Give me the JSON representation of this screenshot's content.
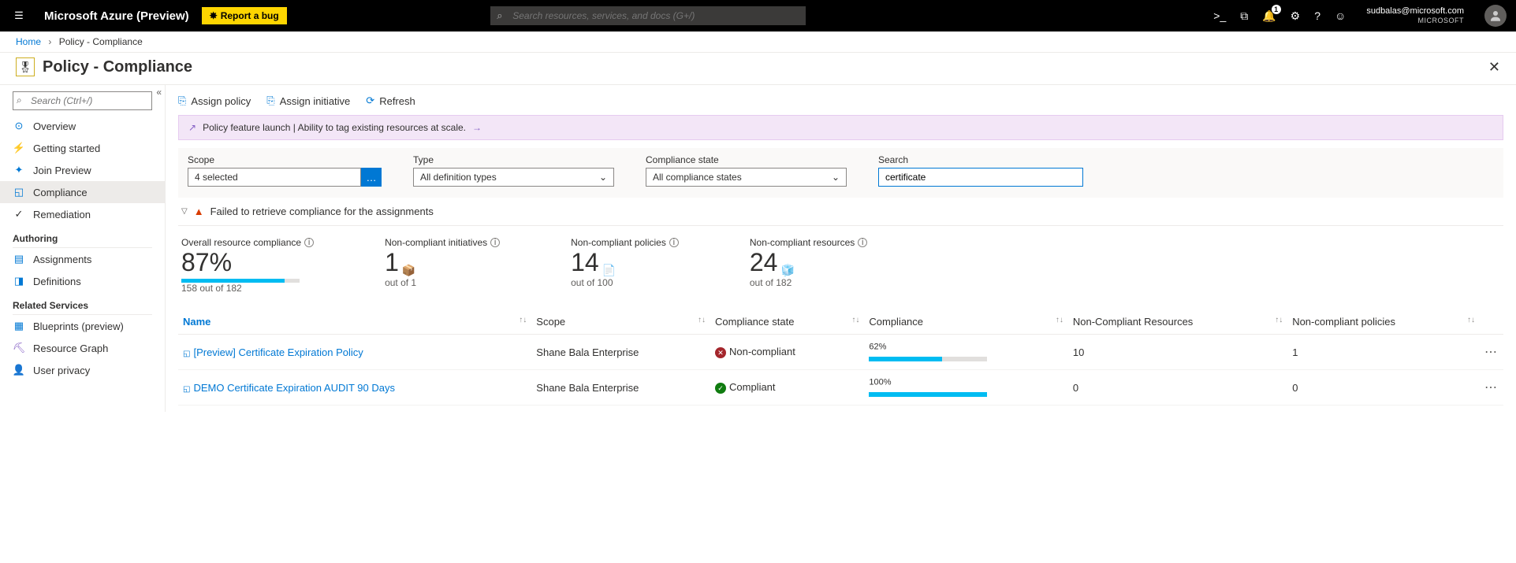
{
  "topbar": {
    "brand": "Microsoft Azure (Preview)",
    "bug_label": "Report a bug",
    "search_placeholder": "Search resources, services, and docs (G+/)",
    "notification_count": "1",
    "user_email": "sudbalas@microsoft.com",
    "user_org": "MICROSOFT"
  },
  "breadcrumb": {
    "home": "Home",
    "current": "Policy - Compliance"
  },
  "page": {
    "title": "Policy - Compliance"
  },
  "sidebar": {
    "search_placeholder": "Search (Ctrl+/)",
    "items": [
      {
        "label": "Overview",
        "icon": "⊙",
        "color": "#0078d4"
      },
      {
        "label": "Getting started",
        "icon": "⚡",
        "color": "#323130"
      },
      {
        "label": "Join Preview",
        "icon": "✦",
        "color": "#0078d4"
      },
      {
        "label": "Compliance",
        "icon": "◱",
        "color": "#0078d4",
        "active": true
      },
      {
        "label": "Remediation",
        "icon": "✓",
        "color": "#323130"
      }
    ],
    "authoring_label": "Authoring",
    "authoring": [
      {
        "label": "Assignments",
        "icon": "▤",
        "color": "#0078d4"
      },
      {
        "label": "Definitions",
        "icon": "◨",
        "color": "#0078d4"
      }
    ],
    "related_label": "Related Services",
    "related": [
      {
        "label": "Blueprints (preview)",
        "icon": "▦",
        "color": "#0078d4"
      },
      {
        "label": "Resource Graph",
        "icon": "⛏",
        "color": "#8661c5"
      },
      {
        "label": "User privacy",
        "icon": "👤",
        "color": "#107c10"
      }
    ]
  },
  "toolbar": {
    "assign_policy": "Assign policy",
    "assign_initiative": "Assign initiative",
    "refresh": "Refresh"
  },
  "banner": {
    "text": "Policy feature launch | Ability to tag existing resources at scale."
  },
  "filters": {
    "scope_label": "Scope",
    "scope_value": "4 selected",
    "scope_btn": "…",
    "type_label": "Type",
    "type_value": "All definition types",
    "state_label": "Compliance state",
    "state_value": "All compliance states",
    "search_label": "Search",
    "search_value": "certificate"
  },
  "warning": {
    "text": "Failed to retrieve compliance for the assignments"
  },
  "stats": {
    "overall_label": "Overall resource compliance",
    "overall_value": "87%",
    "overall_sub": "158 out of 182",
    "overall_bar_pct": 87,
    "init_label": "Non-compliant initiatives",
    "init_value": "1",
    "init_sub": "out of 1",
    "pol_label": "Non-compliant policies",
    "pol_value": "14",
    "pol_sub": "out of 100",
    "res_label": "Non-compliant resources",
    "res_value": "24",
    "res_sub": "out of 182"
  },
  "table": {
    "headers": {
      "name": "Name",
      "scope": "Scope",
      "state": "Compliance state",
      "compliance": "Compliance",
      "noncompliant_res": "Non-Compliant Resources",
      "noncompliant_pol": "Non-compliant policies"
    },
    "rows": [
      {
        "name": "[Preview] Certificate Expiration Policy",
        "scope": "Shane Bala Enterprise",
        "state": "Non-compliant",
        "state_ok": false,
        "pct": 62,
        "pct_label": "62%",
        "nc_res": "10",
        "nc_pol": "1"
      },
      {
        "name": "DEMO Certificate Expiration AUDIT 90 Days",
        "scope": "Shane Bala Enterprise",
        "state": "Compliant",
        "state_ok": true,
        "pct": 100,
        "pct_label": "100%",
        "nc_res": "0",
        "nc_pol": "0"
      }
    ]
  },
  "colors": {
    "accent": "#0078d4",
    "bar_fill": "#00bcf2",
    "banner_bg": "#f3e6f7"
  }
}
